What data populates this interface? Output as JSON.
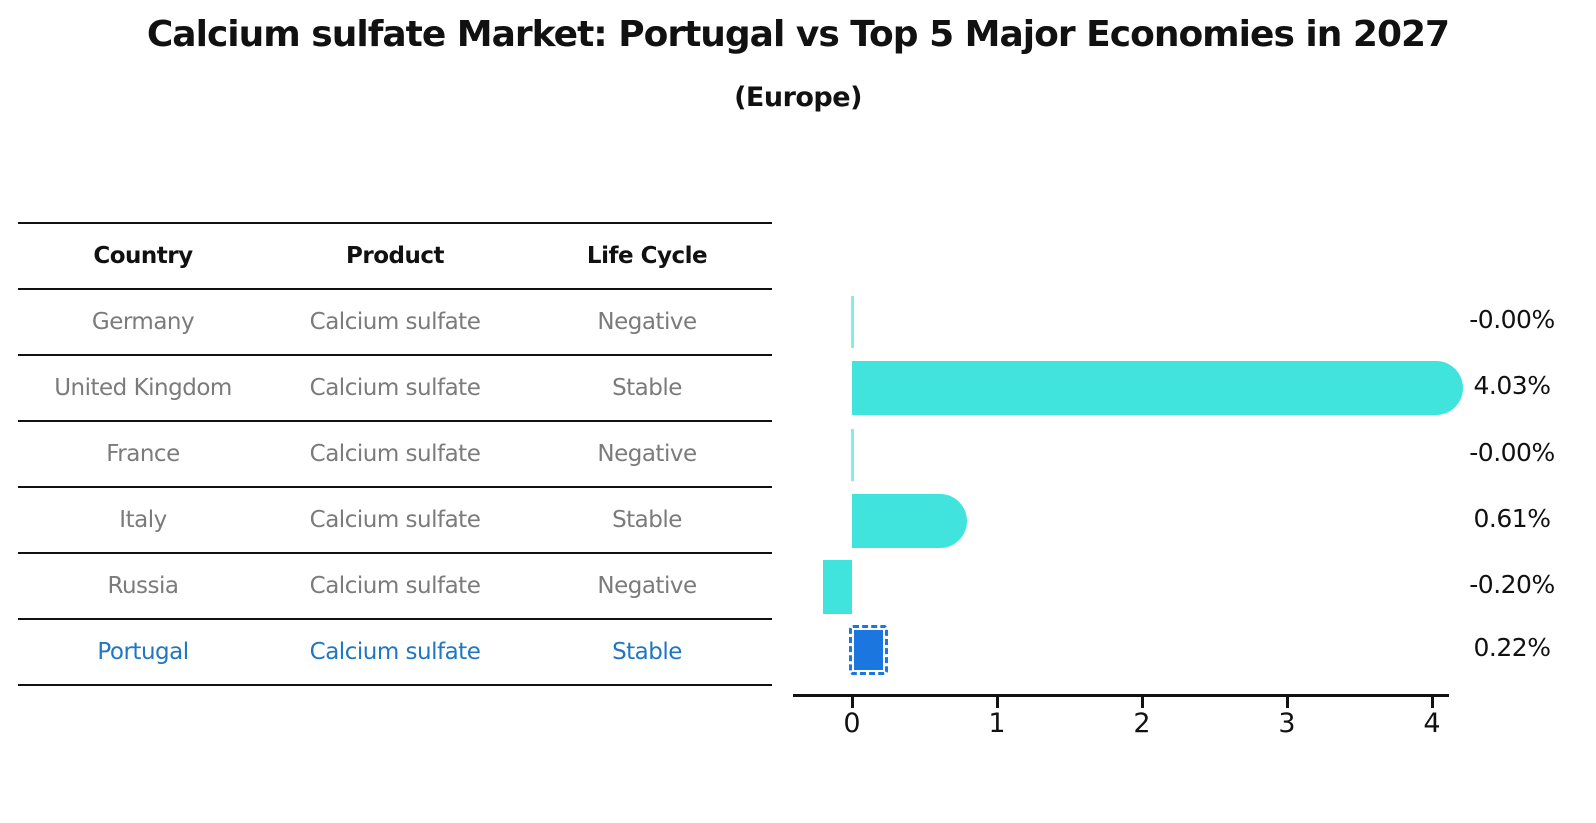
{
  "title": "Calcium sulfate Market: Portugal vs Top 5 Major Economies in 2027",
  "subtitle": "(Europe)",
  "table": {
    "headers": [
      "Country",
      "Product",
      "Life Cycle"
    ],
    "rows": [
      {
        "country": "Germany",
        "product": "Calcium sulfate",
        "life_cycle": "Negative",
        "highlight": false
      },
      {
        "country": "United Kingdom",
        "product": "Calcium sulfate",
        "life_cycle": "Stable",
        "highlight": false
      },
      {
        "country": "France",
        "product": "Calcium sulfate",
        "life_cycle": "Negative",
        "highlight": false
      },
      {
        "country": "Italy",
        "product": "Calcium sulfate",
        "life_cycle": "Stable",
        "highlight": false
      },
      {
        "country": "Russia",
        "product": "Calcium sulfate",
        "life_cycle": "Negative",
        "highlight": false
      },
      {
        "country": "Portugal",
        "product": "Calcium sulfate",
        "life_cycle": "Stable",
        "highlight": true
      }
    ]
  },
  "chart_data": {
    "type": "bar",
    "orientation": "horizontal",
    "categories": [
      "Germany",
      "United Kingdom",
      "France",
      "Italy",
      "Russia",
      "Portugal"
    ],
    "values": [
      -0.0,
      4.03,
      -0.0,
      0.61,
      -0.2,
      0.22
    ],
    "value_labels": [
      "-0.00%",
      "4.03%",
      "-0.00%",
      "0.61%",
      "-0.20%",
      "0.22%"
    ],
    "x_ticks": [
      0,
      1,
      2,
      3,
      4
    ],
    "xlim": [
      -0.4,
      4.1
    ],
    "xlabel": "",
    "ylabel": "",
    "grid": false,
    "legend": "none",
    "bar_color": "#40E4DC",
    "highlight_color": "#1c76e0",
    "highlight_index": 5,
    "highlight_edge_style": "dashed"
  },
  "colors": {
    "text": "#111111",
    "table_text": "#7b7b7b",
    "highlight_text": "#1f77c4",
    "bar": "#40E4DC",
    "highlight_bar": "#1c76e0"
  }
}
